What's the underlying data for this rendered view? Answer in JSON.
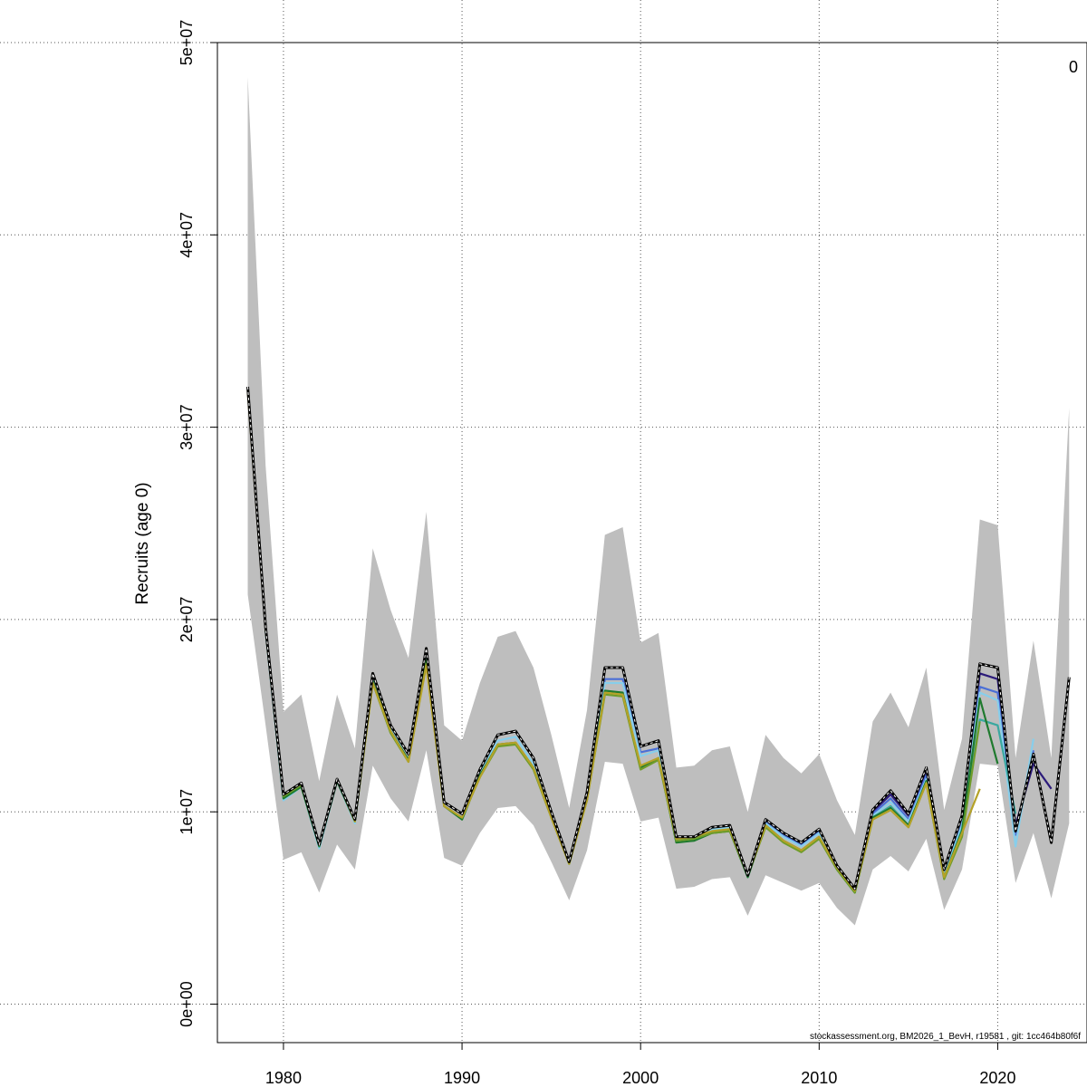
{
  "chart_data": {
    "type": "line",
    "title": "",
    "xlabel": "",
    "ylabel": "Recruits (age 0)",
    "corner_label": "0",
    "footer_note": "stockassessment.org, BM2026_1_BevH, r19581 , git: 1cc464b80f6f",
    "xlim": [
      1976.3,
      2025.0
    ],
    "ylim": [
      -2000000,
      50000000
    ],
    "x_ticks": [
      1980,
      1990,
      2000,
      2010,
      2020
    ],
    "x_tick_labels": [
      "1980",
      "1990",
      "2000",
      "2010",
      "2020"
    ],
    "y_ticks": [
      0,
      10000000,
      20000000,
      30000000,
      40000000,
      50000000
    ],
    "y_tick_labels": [
      "0e+00",
      "1e+07",
      "2e+07",
      "3e+07",
      "4e+07",
      "5e+07"
    ],
    "grid": true,
    "colors": {
      "band": "#bebebe",
      "main": "#000000",
      "retro1": "#2c1b7a",
      "retro2": "#4b6fd6",
      "retro3": "#87ceeb",
      "retro4": "#3aa8a0",
      "retro5": "#1f7a2e",
      "retro6": "#6f9c2a",
      "retro7": "#b5a228"
    },
    "band": {
      "x": [
        1978,
        1979,
        1980,
        1981,
        1982,
        1983,
        1984,
        1985,
        1986,
        1987,
        1988,
        1989,
        1990,
        1991,
        1992,
        1993,
        1994,
        1995,
        1996,
        1997,
        1998,
        1999,
        2000,
        2001,
        2002,
        2003,
        2004,
        2005,
        2006,
        2007,
        2008,
        2009,
        2010,
        2011,
        2012,
        2013,
        2014,
        2015,
        2016,
        2017,
        2018,
        2019,
        2020,
        2021,
        2022,
        2023,
        2024
      ],
      "lower": [
        21300000,
        14500000,
        7500000,
        7900000,
        5800000,
        8300000,
        7000000,
        12400000,
        10700000,
        9500000,
        13200000,
        7600000,
        7200000,
        8900000,
        10200000,
        10300000,
        9300000,
        7400000,
        5400000,
        8000000,
        12600000,
        12500000,
        9500000,
        9700000,
        6000000,
        6100000,
        6500000,
        6600000,
        4600000,
        6700000,
        6300000,
        5900000,
        6300000,
        5000000,
        4100000,
        7000000,
        7700000,
        6900000,
        8600000,
        4900000,
        7000000,
        12500000,
        12400000,
        6300000,
        8900000,
        5500000,
        9400000
      ],
      "upper": [
        48200000,
        28000000,
        15200000,
        16100000,
        11600000,
        16100000,
        13300000,
        23700000,
        20500000,
        18000000,
        25600000,
        14500000,
        13700000,
        16700000,
        19100000,
        19400000,
        17500000,
        14000000,
        10200000,
        15300000,
        24400000,
        24800000,
        18800000,
        19300000,
        12300000,
        12400000,
        13200000,
        13400000,
        10000000,
        14000000,
        12800000,
        12000000,
        13000000,
        10600000,
        8800000,
        14700000,
        16200000,
        14400000,
        17500000,
        10100000,
        13800000,
        25200000,
        24900000,
        12800000,
        18900000,
        12800000,
        31000000
      ]
    },
    "series": [
      {
        "key": "main",
        "x": [
          1978,
          1979,
          1980,
          1981,
          1982,
          1983,
          1984,
          1985,
          1986,
          1987,
          1988,
          1989,
          1990,
          1991,
          1992,
          1993,
          1994,
          1995,
          1996,
          1997,
          1998,
          1999,
          2000,
          2001,
          2002,
          2003,
          2004,
          2005,
          2006,
          2007,
          2008,
          2009,
          2010,
          2011,
          2012,
          2013,
          2014,
          2015,
          2016,
          2017,
          2018,
          2019,
          2020,
          2021,
          2022,
          2023,
          2024
        ],
        "values": [
          32100000,
          19600000,
          10900000,
          11500000,
          8300000,
          11700000,
          9600000,
          17200000,
          14500000,
          13000000,
          18500000,
          10500000,
          9900000,
          12200000,
          14000000,
          14200000,
          12800000,
          10000000,
          7400000,
          11000000,
          17500000,
          17500000,
          13400000,
          13700000,
          8700000,
          8700000,
          9200000,
          9300000,
          6700000,
          9600000,
          8900000,
          8400000,
          9100000,
          7200000,
          6000000,
          10100000,
          11100000,
          9900000,
          12300000,
          7000000,
          9800000,
          17700000,
          17500000,
          9000000,
          13000000,
          8400000,
          17000000
        ]
      },
      {
        "key": "retro1",
        "x": [
          2012,
          2013,
          2014,
          2015,
          2016,
          2017,
          2018,
          2019,
          2020,
          2021,
          2022,
          2023
        ],
        "values": [
          5900000,
          10000000,
          10900000,
          9800000,
          12100000,
          6900000,
          9600000,
          17200000,
          16900000,
          9300000,
          12500000,
          11200000
        ]
      },
      {
        "key": "retro2",
        "x": [
          1997,
          1998,
          1999,
          2000,
          2001,
          2002,
          2003,
          2004,
          2005,
          2006,
          2007,
          2008,
          2009,
          2010,
          2011,
          2012,
          2013,
          2014,
          2015,
          2016,
          2017,
          2018,
          2019,
          2020,
          2021,
          2022
        ],
        "values": [
          10900000,
          16900000,
          16900000,
          13100000,
          13300000,
          8600000,
          8700000,
          9200000,
          9300000,
          6700000,
          9500000,
          8800000,
          8300000,
          9000000,
          7100000,
          5900000,
          9900000,
          10700000,
          9600000,
          11900000,
          6800000,
          9500000,
          16500000,
          16200000,
          8800000,
          13200000
        ]
      },
      {
        "key": "retro3",
        "x": [
          1979,
          1980,
          1981,
          1982,
          1983,
          1984,
          1985,
          1986,
          1987,
          1988,
          1989,
          1990,
          1991,
          1992,
          1993,
          1994,
          1995,
          1996,
          1997,
          1998,
          1999,
          2000,
          2001,
          2002,
          2003,
          2004,
          2005,
          2006,
          2007,
          2008,
          2009,
          2010,
          2011,
          2012,
          2013,
          2014,
          2015,
          2016,
          2017,
          2018,
          2019,
          2020,
          2021,
          2022
        ],
        "values": [
          19400000,
          10600000,
          11300000,
          8100000,
          11600000,
          9400000,
          16900000,
          14300000,
          12700000,
          18100000,
          10300000,
          9700000,
          12000000,
          13700000,
          13900000,
          12500000,
          9800000,
          7300000,
          10800000,
          16700000,
          16700000,
          12900000,
          13200000,
          8500000,
          8600000,
          9100000,
          9200000,
          6600000,
          9400000,
          8700000,
          8200000,
          8900000,
          7000000,
          5800000,
          9800000,
          10500000,
          9500000,
          11700000,
          6700000,
          9300000,
          16200000,
          15800000,
          8200000,
          13800000
        ]
      },
      {
        "key": "retro4",
        "x": [
          2012,
          2013,
          2014,
          2015,
          2016,
          2017,
          2018,
          2019,
          2020,
          2021
        ],
        "values": [
          5800000,
          9700000,
          10300000,
          9300000,
          11600000,
          6600000,
          9100000,
          14800000,
          14500000,
          9900000
        ]
      },
      {
        "key": "retro5",
        "x": [
          1979,
          1980,
          1981,
          1982,
          1983,
          1984,
          1985,
          1986,
          1987,
          1988,
          1989,
          1990,
          1991,
          1992,
          1993,
          1994,
          1995,
          1996,
          1997,
          1998,
          1999,
          2000,
          2001,
          2002,
          2003,
          2004,
          2005,
          2006,
          2007,
          2008,
          2009,
          2010,
          2011,
          2012,
          2013,
          2014,
          2015,
          2016,
          2017,
          2018,
          2019,
          2020
        ],
        "values": [
          19500000,
          10700000,
          11300000,
          8200000,
          11600000,
          9500000,
          16800000,
          14200000,
          12700000,
          17900000,
          10300000,
          9600000,
          11900000,
          13500000,
          13600000,
          12300000,
          9800000,
          7300000,
          10700000,
          16300000,
          16200000,
          12300000,
          12800000,
          8400000,
          8500000,
          8900000,
          9000000,
          6600000,
          9300000,
          8500000,
          8000000,
          8700000,
          7000000,
          5800000,
          9700000,
          10200000,
          9300000,
          11600000,
          6600000,
          9000000,
          15900000,
          12500000
        ]
      },
      {
        "key": "retro6",
        "x": [
          1979,
          1980,
          1981,
          1982,
          1983,
          1984,
          1985,
          1986,
          1987,
          1988,
          1989,
          1990,
          1991,
          1992,
          1993,
          1994,
          1995,
          1996,
          1997,
          1998,
          1999,
          2000,
          2001,
          2002,
          2003,
          2004,
          2005,
          2006,
          2007,
          2008,
          2009,
          2010,
          2011,
          2012,
          2013,
          2014,
          2015,
          2016,
          2017,
          2018,
          2019
        ],
        "values": [
          19500000,
          10800000,
          11400000,
          8300000,
          11700000,
          9500000,
          16700000,
          14100000,
          12600000,
          17700000,
          10300000,
          9700000,
          11800000,
          13400000,
          13500000,
          12200000,
          9700000,
          7300000,
          10600000,
          16100000,
          16000000,
          12200000,
          12700000,
          8500000,
          8600000,
          8900000,
          9000000,
          6700000,
          9200000,
          8400000,
          7900000,
          8600000,
          7000000,
          5800000,
          9600000,
          10100000,
          9200000,
          11500000,
          6500000,
          8700000,
          14700000
        ]
      },
      {
        "key": "retro7",
        "x": [
          1978,
          1979,
          1980,
          1981,
          1982,
          1983,
          1984,
          1985,
          1986,
          1987,
          1988,
          1989,
          1990,
          1991,
          1992,
          1993,
          1994,
          1995,
          1996,
          1997,
          1998,
          1999,
          2000,
          2001,
          2002,
          2003,
          2004,
          2005,
          2006,
          2007,
          2008,
          2009,
          2010,
          2011,
          2012,
          2013,
          2014,
          2015,
          2016,
          2017,
          2018,
          2019
        ],
        "values": [
          31900000,
          19500000,
          10900000,
          11500000,
          8300000,
          11700000,
          9500000,
          16700000,
          14200000,
          12600000,
          17600000,
          10300000,
          9700000,
          11800000,
          13500000,
          13600000,
          12300000,
          9700000,
          7300000,
          10600000,
          16200000,
          16100000,
          12400000,
          12800000,
          8600000,
          8700000,
          9000000,
          9100000,
          6700000,
          9300000,
          8500000,
          8000000,
          8700000,
          7100000,
          5900000,
          9600000,
          10100000,
          9200000,
          11500000,
          6600000,
          8900000,
          11200000
        ]
      }
    ]
  }
}
